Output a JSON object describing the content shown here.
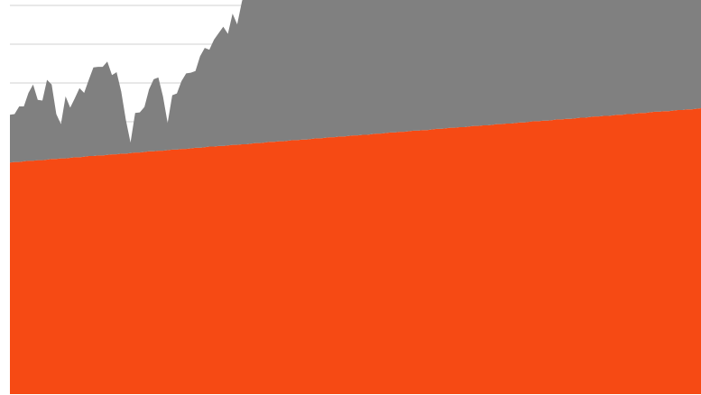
{
  "chart_data": {
    "type": "area",
    "stacked": true,
    "grid": true,
    "legend": "none",
    "title": "",
    "xlabel": "",
    "ylabel": "",
    "x_count": 150,
    "ylim": [
      0,
      100
    ],
    "series": [
      {
        "color": "#f64a14",
        "values": [
          39.2,
          39.3,
          39.3,
          39.4,
          39.5,
          39.5,
          39.6,
          39.6,
          39.7,
          39.8,
          39.8,
          39.9,
          39.9,
          40.0,
          40.1,
          40.1,
          40.2,
          40.3,
          40.3,
          40.4,
          40.4,
          40.5,
          40.6,
          40.6,
          40.7,
          40.7,
          40.8,
          40.9,
          40.9,
          41.0,
          41.1,
          41.1,
          41.2,
          41.2,
          41.3,
          41.4,
          41.4,
          41.5,
          41.5,
          41.6,
          41.7,
          41.7,
          41.8,
          41.9,
          41.9,
          42.0,
          42.0,
          42.1,
          42.2,
          42.2,
          42.3,
          42.3,
          42.4,
          42.5,
          42.5,
          42.6,
          42.7,
          42.7,
          42.8,
          42.8,
          42.9,
          43.0,
          43.0,
          43.1,
          43.1,
          43.2,
          43.3,
          43.3,
          43.4,
          43.5,
          43.5,
          43.6,
          43.6,
          43.7,
          43.8,
          43.8,
          43.9,
          43.9,
          44.0,
          44.1,
          44.1,
          44.2,
          44.3,
          44.3,
          44.4,
          44.4,
          44.5,
          44.6,
          44.6,
          44.7,
          44.7,
          44.8,
          44.9,
          44.9,
          45.0,
          45.1,
          45.1,
          45.2,
          45.2,
          45.3,
          45.4,
          45.4,
          45.5,
          45.5,
          45.6,
          45.7,
          45.7,
          45.8,
          45.8,
          45.9,
          46.0,
          46.0,
          46.1,
          46.2,
          46.2,
          46.3,
          46.3,
          46.4,
          46.5,
          46.5,
          46.6,
          46.6,
          46.7,
          46.8,
          46.8,
          46.9,
          47.0,
          47.0,
          47.1,
          47.1,
          47.2,
          47.3,
          47.3,
          47.4,
          47.4,
          47.5,
          47.6,
          47.6,
          47.7,
          47.8,
          47.8,
          47.9,
          47.9,
          48.0,
          48.1,
          48.1,
          48.2,
          48.2,
          48.3,
          48.4
        ]
      },
      {
        "color": "#808080",
        "values": [
          8.1,
          8.1,
          9.4,
          9.3,
          11.5,
          12.9,
          10.2,
          10.1,
          13.5,
          12.6,
          7.6,
          5.8,
          10.5,
          8.5,
          10.0,
          11.7,
          10.8,
          12.9,
          15.0,
          15.0,
          15.0,
          15.8,
          13.4,
          13.9,
          10.5,
          5.7,
          1.8,
          6.7,
          6.8,
          7.6,
          10.5,
          12.2,
          12.4,
          9.2,
          4.6,
          9.2,
          9.5,
          11.5,
          12.8,
          12.8,
          13.0,
          15.5,
          16.8,
          16.4,
          18.1,
          19.1,
          20.2,
          18.9,
          22.2,
          20.4,
          24.1,
          27.0,
          28.6,
          29.5,
          26.6,
          29.1,
          31.4,
          31.3,
          32.8,
          33.3,
          30.2,
          31.9,
          30.6,
          30.9,
          32.5,
          31.4,
          33.4,
          36.9,
          37.0,
          37.2,
          36.4,
          35.2,
          36.7,
          28.0,
          27.1,
          31.6,
          31.7,
          27.4,
          24.7,
          24.8,
          25.4,
          26.6,
          27.6,
          25.9,
          27.9,
          28.3,
          28.3,
          26.8,
          28.5,
          32.3,
          32.5,
          35.9,
          36.3,
          37.8,
          39.1,
          38.4,
          39.2,
          38.7,
          40.7,
          42.2,
          41.6,
          42.1,
          44.3,
          40.0,
          38.3,
          40.6,
          40.9,
          39.7,
          41.7,
          42.3,
          41.4,
          37.7,
          38.1,
          31.7,
          35.8,
          38.1,
          37.8,
          39.2,
          38.3,
          39.3,
          40.4,
          39.6,
          40.4,
          40.7,
          39.8,
          39.5,
          39.9,
          40.1,
          40.3,
          40.5,
          40.7,
          40.9,
          41.1,
          41.3,
          41.5,
          41.7,
          41.9,
          42.1,
          42.3,
          42.5,
          42.7,
          42.9,
          43.1,
          43.3,
          43.5,
          43.7,
          43.9,
          44.1,
          44.3,
          44.5
        ]
      }
    ]
  }
}
